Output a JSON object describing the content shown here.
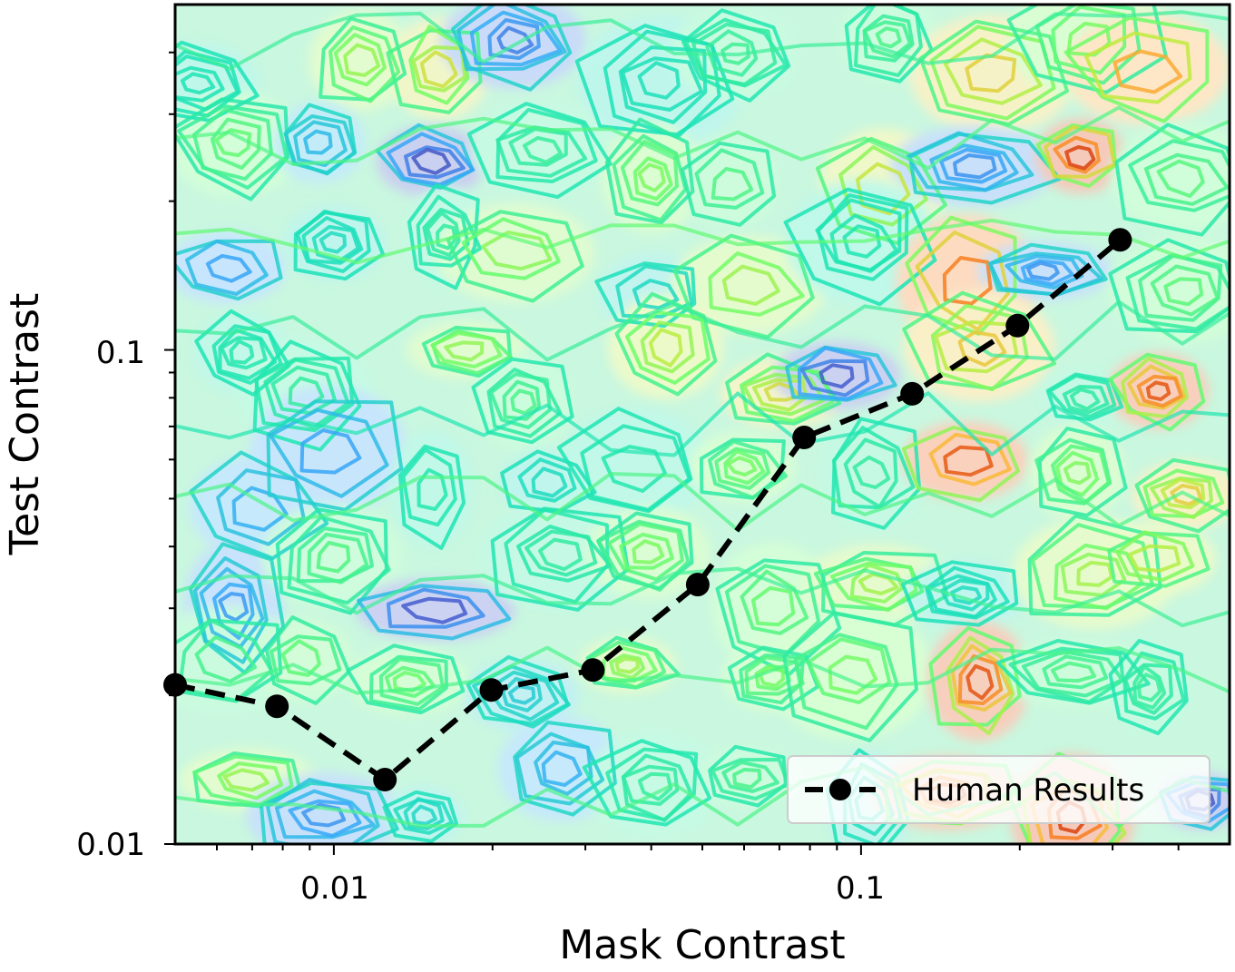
{
  "chart_data": {
    "type": "line",
    "background": "contour (turbo colormap, noisy texture)",
    "xscale": "log",
    "yscale": "log",
    "xlabel": "Mask Contrast",
    "ylabel": "Test Contrast",
    "xlim": [
      0.005,
      0.5
    ],
    "ylim": [
      0.01,
      0.5
    ],
    "x_ticks": [
      {
        "value": 0.01,
        "label": "0.01"
      },
      {
        "value": 0.1,
        "label": "0.1"
      }
    ],
    "y_ticks": [
      {
        "value": 0.01,
        "label": "0.01"
      },
      {
        "value": 0.1,
        "label": "0.1"
      }
    ],
    "series": [
      {
        "name": "Human Results",
        "style": "dashed line with circle markers",
        "color": "#000000",
        "x": [
          0.005,
          0.0078,
          0.0125,
          0.0199,
          0.031,
          0.049,
          0.078,
          0.125,
          0.198,
          0.31
        ],
        "y": [
          0.021,
          0.019,
          0.0135,
          0.0205,
          0.0225,
          0.0335,
          0.0665,
          0.0815,
          0.112,
          0.167
        ]
      }
    ],
    "legend": {
      "position": "bottom-right",
      "entries": [
        "Human Results"
      ]
    },
    "colors": {
      "low": "#3a2bd6",
      "mid": "#7ef2c0",
      "high": "#f0412a",
      "line": "#000000"
    }
  }
}
